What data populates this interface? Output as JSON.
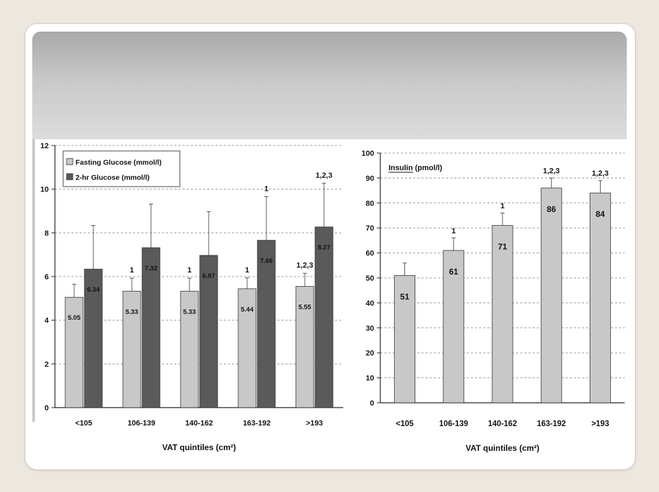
{
  "chart_data": [
    {
      "type": "bar",
      "categories": [
        "<105",
        "106-139",
        "140-162",
        "163-192",
        ">193"
      ],
      "series": [
        {
          "name": "Fasting Glucose (mmol/l)",
          "values": [
            5.05,
            5.33,
            5.33,
            5.44,
            5.55
          ],
          "labels": [
            "5.05",
            "5.33",
            "5.33",
            "5.44",
            "5.55"
          ],
          "errors": [
            0.6,
            0.6,
            0.6,
            0.5,
            0.6
          ],
          "color": "#c8c8c8"
        },
        {
          "name": "2-hr Glucose (mmol/l)",
          "values": [
            6.34,
            7.32,
            6.97,
            7.66,
            8.27
          ],
          "labels": [
            "6.34",
            "7.32",
            "6.97",
            "7.66",
            "8.27"
          ],
          "errors": [
            2.0,
            2.0,
            2.0,
            2.0,
            2.0
          ],
          "color": "#5a5a5a"
        }
      ],
      "annotations": [
        "",
        "1",
        "1",
        "1",
        "1,2,3"
      ],
      "annotations_2hr": [
        "",
        "",
        "",
        "1",
        "1,2,3"
      ],
      "xlabel": "VAT quintiles (cm²)",
      "ylim": [
        0,
        12
      ],
      "yticks": [
        "0",
        "2",
        "4",
        "6",
        "8",
        "10",
        "12"
      ],
      "grid": true,
      "legend": "top-left"
    },
    {
      "type": "bar",
      "categories": [
        "<105",
        "106-139",
        "140-162",
        "163-192",
        ">193"
      ],
      "series": [
        {
          "name": "Insulin (pmol/l)",
          "values": [
            51,
            61,
            71,
            86,
            84
          ],
          "labels": [
            "51",
            "61",
            "71",
            "86",
            "84"
          ],
          "errors": [
            5,
            5,
            5,
            4,
            5
          ],
          "color": "#c8c8c8"
        }
      ],
      "annotations": [
        "",
        "1",
        "1",
        "1,2,3",
        "1,2,3"
      ],
      "xlabel": "VAT quintiles (cm²)",
      "ylim": [
        0,
        100
      ],
      "yticks": [
        "0",
        "10",
        "20",
        "30",
        "40",
        "50",
        "60",
        "70",
        "80",
        "90",
        "100"
      ],
      "grid": true,
      "legend": "top-left"
    }
  ]
}
